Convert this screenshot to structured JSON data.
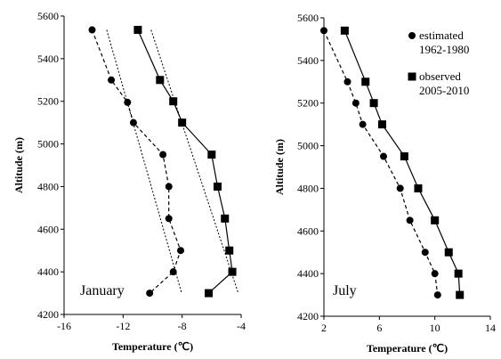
{
  "chart_data": [
    {
      "type": "line",
      "panel_label": "January",
      "xlabel": "Temperature (℃)",
      "ylabel": "Altitude (m)",
      "xlim": [
        -16,
        -4
      ],
      "ylim": [
        4200,
        5600
      ],
      "xticks": [
        "-16",
        "-12",
        "-8",
        "-4"
      ],
      "yticks": [
        "4200",
        "4400",
        "4600",
        "4800",
        "5000",
        "5200",
        "5400",
        "5600"
      ],
      "grid": false,
      "series": [
        {
          "marker": "circle",
          "line_style": "dashed",
          "fit_style": "dotted",
          "points": [
            {
              "x": -14.1,
              "y": 5535
            },
            {
              "x": -12.8,
              "y": 5300
            },
            {
              "x": -11.7,
              "y": 5195
            },
            {
              "x": -11.3,
              "y": 5100
            },
            {
              "x": -9.3,
              "y": 4950
            },
            {
              "x": -8.9,
              "y": 4800
            },
            {
              "x": -8.9,
              "y": 4650
            },
            {
              "x": -8.1,
              "y": 4500
            },
            {
              "x": -8.6,
              "y": 4400
            },
            {
              "x": -10.2,
              "y": 4300
            }
          ]
        },
        {
          "marker": "square",
          "line_style": "solid",
          "fit_style": "dotted",
          "points": [
            {
              "x": -11.0,
              "y": 5535
            },
            {
              "x": -9.5,
              "y": 5300
            },
            {
              "x": -8.6,
              "y": 5200
            },
            {
              "x": -8.0,
              "y": 5100
            },
            {
              "x": -6.0,
              "y": 4950
            },
            {
              "x": -5.6,
              "y": 4800
            },
            {
              "x": -5.1,
              "y": 4650
            },
            {
              "x": -4.8,
              "y": 4500
            },
            {
              "x": -4.6,
              "y": 4400
            },
            {
              "x": -6.2,
              "y": 4300
            }
          ]
        }
      ]
    },
    {
      "type": "line",
      "panel_label": "July",
      "xlabel": "Temperature (℃)",
      "ylabel": "Altitude (m)",
      "xlim": [
        2,
        14
      ],
      "ylim": [
        4200,
        5600
      ],
      "xticks": [
        "2",
        "6",
        "10",
        "14"
      ],
      "yticks": [
        "4200",
        "4400",
        "4600",
        "4800",
        "5000",
        "5200",
        "5400",
        "5600"
      ],
      "grid": false,
      "legend_position": "top-right",
      "series": [
        {
          "name": "estimated 1962-1980",
          "marker": "circle",
          "line_style": "dashed",
          "points": [
            {
              "x": 2.0,
              "y": 5540
            },
            {
              "x": 3.7,
              "y": 5300
            },
            {
              "x": 4.3,
              "y": 5200
            },
            {
              "x": 4.8,
              "y": 5100
            },
            {
              "x": 6.3,
              "y": 4950
            },
            {
              "x": 7.5,
              "y": 4800
            },
            {
              "x": 8.2,
              "y": 4650
            },
            {
              "x": 9.3,
              "y": 4500
            },
            {
              "x": 10.0,
              "y": 4400
            },
            {
              "x": 10.2,
              "y": 4300
            }
          ]
        },
        {
          "name": "observed 2005-2010",
          "marker": "square",
          "line_style": "solid",
          "points": [
            {
              "x": 3.5,
              "y": 5540
            },
            {
              "x": 5.0,
              "y": 5300
            },
            {
              "x": 5.6,
              "y": 5200
            },
            {
              "x": 6.2,
              "y": 5100
            },
            {
              "x": 7.8,
              "y": 4950
            },
            {
              "x": 8.8,
              "y": 4800
            },
            {
              "x": 10.0,
              "y": 4650
            },
            {
              "x": 11.0,
              "y": 4500
            },
            {
              "x": 11.7,
              "y": 4400
            },
            {
              "x": 11.8,
              "y": 4300
            }
          ]
        }
      ]
    }
  ]
}
